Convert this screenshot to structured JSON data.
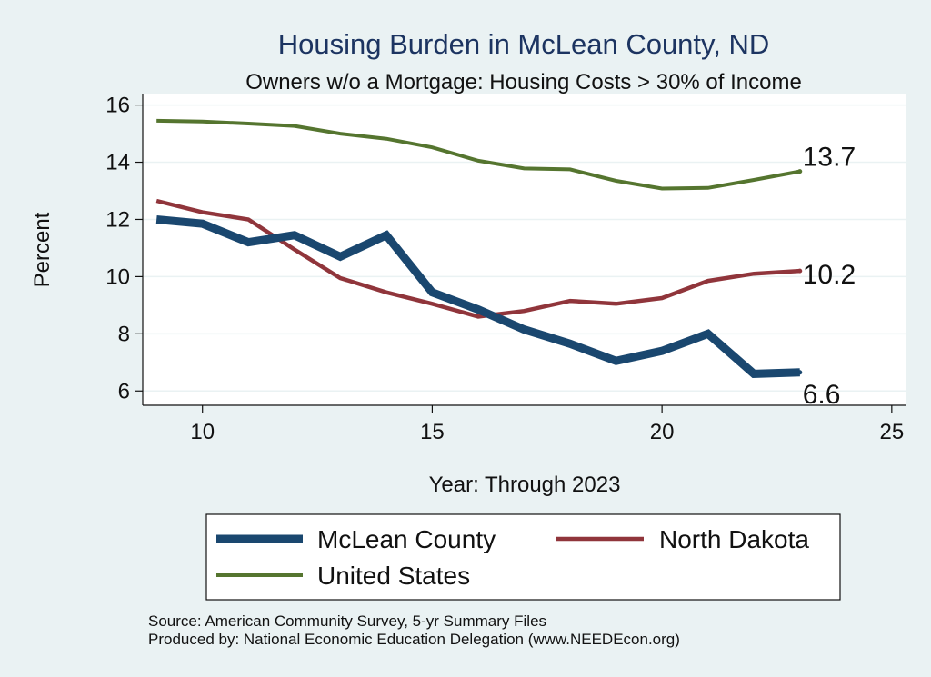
{
  "chart_data": {
    "type": "line",
    "title": "Housing Burden in McLean County, ND",
    "subtitle": "Owners w/o a Mortgage: Housing Costs > 30% of Income",
    "xlabel": "Year: Through 2023",
    "ylabel": "Percent",
    "xlim": [
      8.7,
      25.3
    ],
    "ylim": [
      5.5,
      16.4
    ],
    "xticks": [
      10,
      15,
      20,
      25
    ],
    "yticks": [
      6,
      8,
      10,
      12,
      14,
      16
    ],
    "grid": true,
    "legend_position": "bottom",
    "x": [
      9,
      10,
      11,
      12,
      13,
      14,
      15,
      16,
      17,
      18,
      19,
      20,
      21,
      22,
      23
    ],
    "series": [
      {
        "name": "McLean County",
        "color": "#1a476f",
        "values": [
          12.0,
          11.85,
          11.2,
          11.45,
          10.7,
          11.45,
          9.45,
          8.85,
          8.15,
          7.65,
          7.05,
          7.4,
          8.0,
          6.6,
          6.65
        ],
        "end_label": "6.6"
      },
      {
        "name": "North Dakota",
        "color": "#90353b",
        "values": [
          12.65,
          12.25,
          12.0,
          10.95,
          9.95,
          9.45,
          9.05,
          8.6,
          8.8,
          9.15,
          9.05,
          9.25,
          9.85,
          10.1,
          10.2
        ],
        "end_label": "10.2"
      },
      {
        "name": "United States",
        "color": "#55752f",
        "values": [
          15.45,
          15.42,
          15.35,
          15.27,
          15.0,
          14.82,
          14.52,
          14.05,
          13.78,
          13.75,
          13.35,
          13.08,
          13.1,
          13.38,
          13.68
        ],
        "end_label": "13.7"
      }
    ]
  },
  "source_line": "Source: American Community Survey, 5-yr Summary Files",
  "produced_line": "Produced by: National Economic Education Delegation (www.NEEDEcon.org)"
}
